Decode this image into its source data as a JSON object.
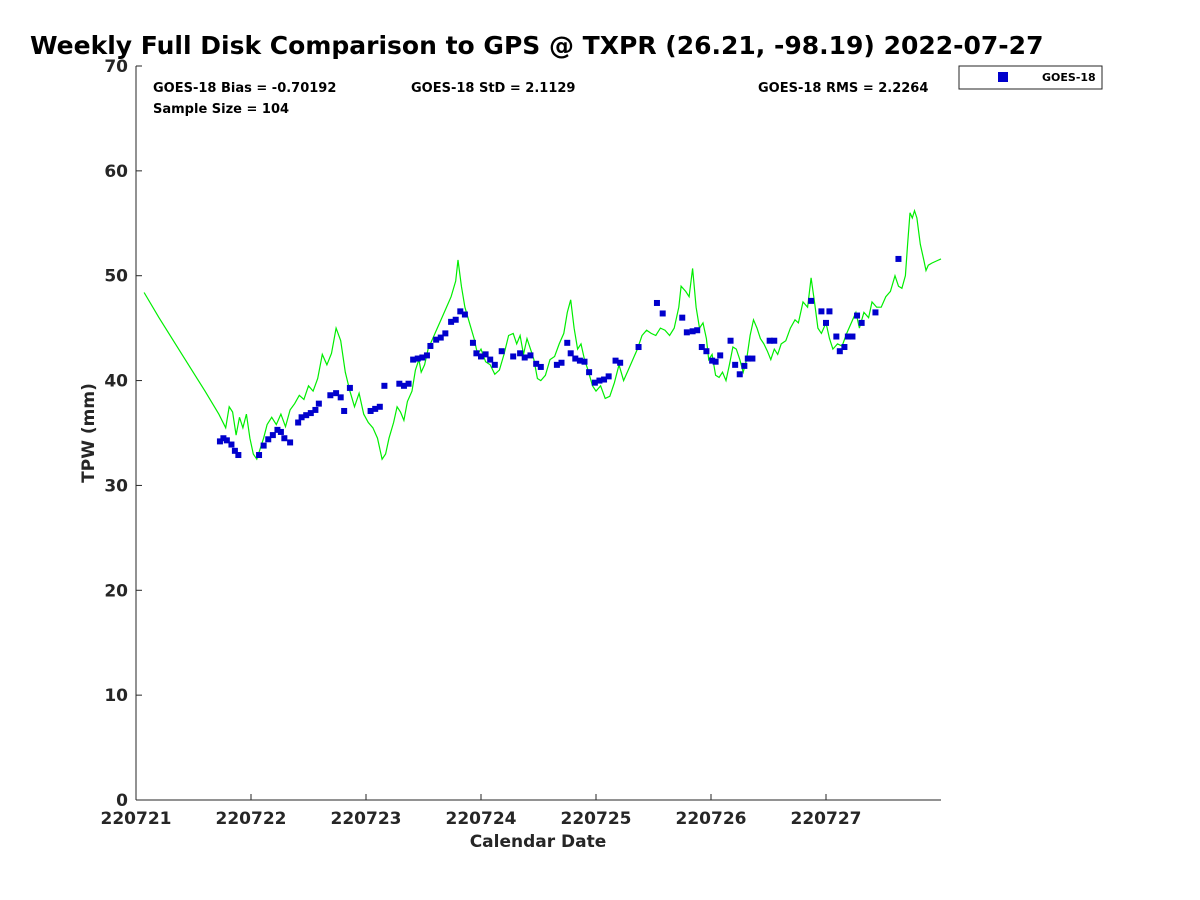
{
  "chart_data": {
    "type": "scatter",
    "title": "Weekly Full Disk Comparison to GPS @ TXPR (26.21, -98.19) 2022-07-27",
    "xlabel": "Calendar Date",
    "ylabel": "TPW (mm)",
    "xlim": [
      0,
      7
    ],
    "ylim": [
      0,
      70
    ],
    "x_ticks": [
      0,
      1,
      2,
      3,
      4,
      5,
      6
    ],
    "x_tick_labels": [
      "220721",
      "220722",
      "220723",
      "220724",
      "220725",
      "220726",
      "220727"
    ],
    "y_ticks": [
      0,
      10,
      20,
      30,
      40,
      50,
      60,
      70
    ],
    "y_tick_labels": [
      "0",
      "10",
      "20",
      "30",
      "40",
      "50",
      "60",
      "70"
    ],
    "stats": {
      "bias": "GOES-18 Bias = -0.70192",
      "sample": "Sample Size = 104",
      "std": "GOES-18 StD = 2.1129",
      "rms": "GOES-18 RMS = 2.2264"
    },
    "legend": {
      "position": "top-right outside",
      "label": "GOES-18",
      "color": "#0000cc"
    },
    "gps_line_color": "#00ee00",
    "series": [
      {
        "name": "GOES-18",
        "marker": "square",
        "color": "#0000cc",
        "points": [
          [
            0.73,
            34.2
          ],
          [
            0.76,
            34.5
          ],
          [
            0.79,
            34.3
          ],
          [
            0.83,
            33.9
          ],
          [
            0.86,
            33.3
          ],
          [
            0.89,
            32.9
          ],
          [
            1.07,
            32.9
          ],
          [
            1.11,
            33.8
          ],
          [
            1.15,
            34.4
          ],
          [
            1.19,
            34.8
          ],
          [
            1.23,
            35.3
          ],
          [
            1.26,
            35.1
          ],
          [
            1.29,
            34.5
          ],
          [
            1.34,
            34.1
          ],
          [
            1.41,
            36.0
          ],
          [
            1.44,
            36.5
          ],
          [
            1.48,
            36.7
          ],
          [
            1.52,
            36.9
          ],
          [
            1.56,
            37.2
          ],
          [
            1.59,
            37.8
          ],
          [
            1.69,
            38.6
          ],
          [
            1.74,
            38.8
          ],
          [
            1.78,
            38.4
          ],
          [
            1.81,
            37.1
          ],
          [
            1.86,
            39.3
          ],
          [
            2.04,
            37.1
          ],
          [
            2.08,
            37.3
          ],
          [
            2.12,
            37.5
          ],
          [
            2.16,
            39.5
          ],
          [
            2.29,
            39.7
          ],
          [
            2.33,
            39.5
          ],
          [
            2.37,
            39.7
          ],
          [
            2.41,
            42.0
          ],
          [
            2.45,
            42.1
          ],
          [
            2.49,
            42.2
          ],
          [
            2.53,
            42.4
          ],
          [
            2.56,
            43.3
          ],
          [
            2.61,
            43.9
          ],
          [
            2.65,
            44.1
          ],
          [
            2.69,
            44.5
          ],
          [
            2.74,
            45.6
          ],
          [
            2.78,
            45.8
          ],
          [
            2.82,
            46.6
          ],
          [
            2.86,
            46.3
          ],
          [
            2.93,
            43.6
          ],
          [
            2.96,
            42.6
          ],
          [
            3.0,
            42.3
          ],
          [
            3.04,
            42.5
          ],
          [
            3.08,
            42.0
          ],
          [
            3.12,
            41.5
          ],
          [
            3.18,
            42.8
          ],
          [
            3.28,
            42.3
          ],
          [
            3.34,
            42.6
          ],
          [
            3.38,
            42.2
          ],
          [
            3.43,
            42.4
          ],
          [
            3.48,
            41.6
          ],
          [
            3.52,
            41.3
          ],
          [
            3.66,
            41.5
          ],
          [
            3.7,
            41.7
          ],
          [
            3.75,
            43.6
          ],
          [
            3.78,
            42.6
          ],
          [
            3.82,
            42.1
          ],
          [
            3.86,
            41.9
          ],
          [
            3.9,
            41.8
          ],
          [
            3.94,
            40.8
          ],
          [
            3.99,
            39.8
          ],
          [
            4.03,
            40.0
          ],
          [
            4.07,
            40.1
          ],
          [
            4.11,
            40.4
          ],
          [
            4.17,
            41.9
          ],
          [
            4.21,
            41.7
          ],
          [
            4.37,
            43.2
          ],
          [
            4.53,
            47.4
          ],
          [
            4.58,
            46.4
          ],
          [
            4.75,
            46.0
          ],
          [
            4.79,
            44.6
          ],
          [
            4.84,
            44.7
          ],
          [
            4.88,
            44.8
          ],
          [
            4.92,
            43.2
          ],
          [
            4.96,
            42.8
          ],
          [
            5.01,
            41.9
          ],
          [
            5.04,
            41.8
          ],
          [
            5.08,
            42.4
          ],
          [
            5.17,
            43.8
          ],
          [
            5.21,
            41.5
          ],
          [
            5.25,
            40.6
          ],
          [
            5.29,
            41.4
          ],
          [
            5.32,
            42.1
          ],
          [
            5.36,
            42.1
          ],
          [
            5.51,
            43.8
          ],
          [
            5.55,
            43.8
          ],
          [
            5.87,
            47.6
          ],
          [
            5.96,
            46.6
          ],
          [
            6.0,
            45.5
          ],
          [
            6.03,
            46.6
          ],
          [
            6.09,
            44.2
          ],
          [
            6.12,
            42.8
          ],
          [
            6.16,
            43.2
          ],
          [
            6.19,
            44.2
          ],
          [
            6.23,
            44.2
          ],
          [
            6.27,
            46.2
          ],
          [
            6.31,
            45.5
          ],
          [
            6.43,
            46.5
          ],
          [
            6.63,
            51.6
          ]
        ]
      }
    ],
    "gps_series": {
      "color": "#00ee00",
      "points": [
        [
          0.07,
          48.4
        ],
        [
          0.2,
          46.0
        ],
        [
          0.4,
          42.5
        ],
        [
          0.6,
          39.0
        ],
        [
          0.72,
          36.8
        ],
        [
          0.78,
          35.5
        ],
        [
          0.81,
          37.5
        ],
        [
          0.84,
          37.0
        ],
        [
          0.87,
          34.8
        ],
        [
          0.9,
          36.5
        ],
        [
          0.93,
          35.5
        ],
        [
          0.96,
          36.8
        ],
        [
          0.99,
          34.5
        ],
        [
          1.02,
          33.0
        ],
        [
          1.05,
          32.5
        ],
        [
          1.08,
          33.5
        ],
        [
          1.11,
          34.5
        ],
        [
          1.14,
          35.8
        ],
        [
          1.18,
          36.5
        ],
        [
          1.22,
          35.8
        ],
        [
          1.26,
          36.8
        ],
        [
          1.3,
          35.6
        ],
        [
          1.34,
          37.2
        ],
        [
          1.38,
          37.8
        ],
        [
          1.42,
          38.6
        ],
        [
          1.46,
          38.2
        ],
        [
          1.5,
          39.5
        ],
        [
          1.54,
          39.0
        ],
        [
          1.58,
          40.2
        ],
        [
          1.62,
          42.5
        ],
        [
          1.66,
          41.5
        ],
        [
          1.7,
          42.6
        ],
        [
          1.74,
          45.0
        ],
        [
          1.78,
          43.8
        ],
        [
          1.82,
          40.8
        ],
        [
          1.86,
          39.0
        ],
        [
          1.9,
          37.5
        ],
        [
          1.94,
          38.8
        ],
        [
          1.98,
          36.8
        ],
        [
          2.02,
          36.0
        ],
        [
          2.06,
          35.5
        ],
        [
          2.1,
          34.5
        ],
        [
          2.12,
          33.5
        ],
        [
          2.14,
          32.5
        ],
        [
          2.17,
          33.0
        ],
        [
          2.2,
          34.5
        ],
        [
          2.24,
          36.0
        ],
        [
          2.27,
          37.5
        ],
        [
          2.3,
          37.0
        ],
        [
          2.33,
          36.2
        ],
        [
          2.36,
          38.0
        ],
        [
          2.4,
          39.0
        ],
        [
          2.43,
          41.0
        ],
        [
          2.46,
          42.0
        ],
        [
          2.48,
          40.8
        ],
        [
          2.51,
          41.5
        ],
        [
          2.54,
          43.0
        ],
        [
          2.58,
          44.0
        ],
        [
          2.62,
          45.0
        ],
        [
          2.66,
          46.0
        ],
        [
          2.7,
          47.0
        ],
        [
          2.74,
          48.0
        ],
        [
          2.78,
          49.5
        ],
        [
          2.8,
          51.5
        ],
        [
          2.83,
          49.0
        ],
        [
          2.86,
          47.0
        ],
        [
          2.9,
          45.5
        ],
        [
          2.94,
          44.0
        ],
        [
          2.97,
          42.5
        ],
        [
          3.0,
          43.0
        ],
        [
          3.04,
          41.8
        ],
        [
          3.08,
          41.5
        ],
        [
          3.12,
          40.6
        ],
        [
          3.16,
          41.0
        ],
        [
          3.2,
          42.5
        ],
        [
          3.24,
          44.3
        ],
        [
          3.28,
          44.5
        ],
        [
          3.31,
          43.5
        ],
        [
          3.34,
          44.3
        ],
        [
          3.37,
          42.5
        ],
        [
          3.4,
          44.0
        ],
        [
          3.43,
          43.0
        ],
        [
          3.46,
          42.0
        ],
        [
          3.49,
          40.2
        ],
        [
          3.52,
          40.0
        ],
        [
          3.56,
          40.5
        ],
        [
          3.6,
          42.0
        ],
        [
          3.64,
          42.3
        ],
        [
          3.68,
          43.5
        ],
        [
          3.72,
          44.5
        ],
        [
          3.75,
          46.5
        ],
        [
          3.78,
          47.7
        ],
        [
          3.81,
          45.0
        ],
        [
          3.84,
          43.0
        ],
        [
          3.87,
          43.5
        ],
        [
          3.9,
          42.0
        ],
        [
          3.93,
          41.0
        ],
        [
          3.97,
          39.5
        ],
        [
          4.0,
          39.0
        ],
        [
          4.04,
          39.5
        ],
        [
          4.08,
          38.3
        ],
        [
          4.12,
          38.5
        ],
        [
          4.16,
          39.8
        ],
        [
          4.2,
          41.5
        ],
        [
          4.24,
          40.0
        ],
        [
          4.28,
          41.0
        ],
        [
          4.32,
          42.0
        ],
        [
          4.36,
          43.0
        ],
        [
          4.4,
          44.3
        ],
        [
          4.44,
          44.8
        ],
        [
          4.48,
          44.5
        ],
        [
          4.52,
          44.3
        ],
        [
          4.56,
          45.0
        ],
        [
          4.6,
          44.8
        ],
        [
          4.64,
          44.3
        ],
        [
          4.68,
          45.0
        ],
        [
          4.72,
          47.0
        ],
        [
          4.74,
          49.0
        ],
        [
          4.78,
          48.5
        ],
        [
          4.81,
          48.0
        ],
        [
          4.84,
          50.7
        ],
        [
          4.87,
          47.0
        ],
        [
          4.9,
          45.0
        ],
        [
          4.93,
          45.5
        ],
        [
          4.96,
          44.0
        ],
        [
          4.98,
          42.0
        ],
        [
          5.01,
          42.5
        ],
        [
          5.04,
          40.5
        ],
        [
          5.07,
          40.3
        ],
        [
          5.1,
          40.8
        ],
        [
          5.13,
          40.0
        ],
        [
          5.16,
          41.5
        ],
        [
          5.19,
          43.2
        ],
        [
          5.22,
          43.0
        ],
        [
          5.25,
          42.0
        ],
        [
          5.28,
          40.8
        ],
        [
          5.31,
          42.0
        ],
        [
          5.34,
          44.3
        ],
        [
          5.37,
          45.8
        ],
        [
          5.4,
          45.0
        ],
        [
          5.43,
          44.0
        ],
        [
          5.46,
          43.5
        ],
        [
          5.49,
          42.8
        ],
        [
          5.52,
          42.0
        ],
        [
          5.55,
          43.0
        ],
        [
          5.58,
          42.5
        ],
        [
          5.61,
          43.5
        ],
        [
          5.65,
          43.8
        ],
        [
          5.69,
          45.0
        ],
        [
          5.73,
          45.8
        ],
        [
          5.76,
          45.5
        ],
        [
          5.8,
          47.5
        ],
        [
          5.84,
          47.0
        ],
        [
          5.87,
          49.8
        ],
        [
          5.9,
          47.5
        ],
        [
          5.93,
          45.0
        ],
        [
          5.96,
          44.5
        ],
        [
          6.0,
          45.5
        ],
        [
          6.03,
          44.0
        ],
        [
          6.06,
          43.0
        ],
        [
          6.1,
          43.5
        ],
        [
          6.14,
          43.3
        ],
        [
          6.18,
          44.5
        ],
        [
          6.22,
          45.5
        ],
        [
          6.26,
          46.5
        ],
        [
          6.29,
          45.0
        ],
        [
          6.33,
          46.5
        ],
        [
          6.37,
          46.0
        ],
        [
          6.4,
          47.5
        ],
        [
          6.44,
          47.0
        ],
        [
          6.48,
          47.0
        ],
        [
          6.52,
          48.0
        ],
        [
          6.56,
          48.5
        ],
        [
          6.6,
          50.0
        ],
        [
          6.63,
          49.0
        ],
        [
          6.66,
          48.8
        ],
        [
          6.69,
          50.0
        ],
        [
          6.71,
          53.0
        ],
        [
          6.73,
          56.0
        ],
        [
          6.75,
          55.5
        ],
        [
          6.77,
          56.2
        ],
        [
          6.79,
          55.5
        ],
        [
          6.82,
          53.0
        ],
        [
          6.85,
          51.5
        ],
        [
          6.87,
          50.5
        ],
        [
          6.89,
          51.0
        ],
        [
          6.92,
          51.2
        ],
        [
          6.96,
          51.4
        ],
        [
          7.0,
          51.6
        ]
      ]
    }
  }
}
